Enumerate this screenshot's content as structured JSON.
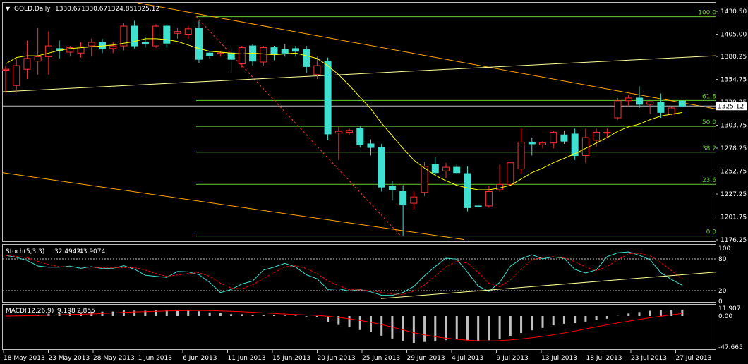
{
  "header": {
    "symbol": "GOLD,Daily",
    "open": "1330.67",
    "high": "1330.67",
    "low": "1324.85",
    "close": "1325.12"
  },
  "stoch": {
    "title": "Stoch(5,3,3)",
    "main": "32.4942",
    "signal": "43.9074",
    "levels": [
      "100",
      "80",
      "20",
      "0"
    ]
  },
  "macd": {
    "title": "MACD(12,26,9)",
    "main": "9.198",
    "signal": "2.855",
    "levels": [
      "11.907",
      "0.00",
      "-47.665"
    ]
  },
  "fibonacci": [
    "100.0",
    "61.8",
    "50.0",
    "38.2",
    "23.6",
    "0.0"
  ],
  "price_axis": [
    "1430.50",
    "1405.00",
    "1380.25",
    "1354.75",
    "1329.25",
    "1303.75",
    "1278.25",
    "1252.75",
    "1227.25",
    "1201.75",
    "1176.25"
  ],
  "current_price": "1325.12",
  "date_axis": [
    "18 May 2013",
    "23 May 2013",
    "28 May 2013",
    "1 Jun 2013",
    "6 Jun 2013",
    "11 Jun 2013",
    "15 Jun 2013",
    "20 Jun 2013",
    "25 Jun 2013",
    "29 Jun 2013",
    "4 Jul 2013",
    "9 Jul 2013",
    "13 Jul 2013",
    "18 Jul 2013",
    "23 Jul 2013",
    "27 Jul 2013"
  ],
  "colors": {
    "bull": "#000000",
    "bull_outline": "#ff3030",
    "bear": "#40e0d0",
    "ma": "#ffff00",
    "trend": "#ffa500",
    "fib": "#66cc33",
    "macd_hist": "#c0c0c0",
    "macd_signal": "#ff0000",
    "stoch_main": "#40e0d0",
    "stoch_signal": "#ff0000"
  },
  "chart_data": {
    "type": "candlestick",
    "symbol": "GOLD",
    "timeframe": "Daily",
    "ylim": [
      1176.25,
      1430.5
    ],
    "candles": [
      {
        "o": 1365,
        "h": 1370,
        "l": 1340,
        "c": 1366
      },
      {
        "o": 1348,
        "h": 1378,
        "l": 1340,
        "c": 1370
      },
      {
        "o": 1366,
        "h": 1398,
        "l": 1355,
        "c": 1378
      },
      {
        "o": 1375,
        "h": 1412,
        "l": 1360,
        "c": 1380
      },
      {
        "o": 1380,
        "h": 1408,
        "l": 1360,
        "c": 1392
      },
      {
        "o": 1389,
        "h": 1398,
        "l": 1378,
        "c": 1387
      },
      {
        "o": 1385,
        "h": 1392,
        "l": 1380,
        "c": 1390
      },
      {
        "o": 1384,
        "h": 1396,
        "l": 1379,
        "c": 1391
      },
      {
        "o": 1392,
        "h": 1400,
        "l": 1380,
        "c": 1396
      },
      {
        "o": 1396,
        "h": 1400,
        "l": 1384,
        "c": 1389
      },
      {
        "o": 1389,
        "h": 1396,
        "l": 1384,
        "c": 1392
      },
      {
        "o": 1392,
        "h": 1418,
        "l": 1387,
        "c": 1414
      },
      {
        "o": 1414,
        "h": 1420,
        "l": 1389,
        "c": 1392
      },
      {
        "o": 1396,
        "h": 1402,
        "l": 1390,
        "c": 1394
      },
      {
        "o": 1392,
        "h": 1416,
        "l": 1390,
        "c": 1414
      },
      {
        "o": 1414,
        "h": 1416,
        "l": 1390,
        "c": 1395
      },
      {
        "o": 1406,
        "h": 1412,
        "l": 1400,
        "c": 1408
      },
      {
        "o": 1405,
        "h": 1414,
        "l": 1400,
        "c": 1411
      },
      {
        "o": 1412,
        "h": 1420,
        "l": 1373,
        "c": 1377
      },
      {
        "o": 1384,
        "h": 1386,
        "l": 1378,
        "c": 1381
      },
      {
        "o": 1383,
        "h": 1386,
        "l": 1380,
        "c": 1384
      },
      {
        "o": 1384,
        "h": 1390,
        "l": 1362,
        "c": 1377
      },
      {
        "o": 1372,
        "h": 1392,
        "l": 1368,
        "c": 1390
      },
      {
        "o": 1392,
        "h": 1394,
        "l": 1370,
        "c": 1375
      },
      {
        "o": 1374,
        "h": 1392,
        "l": 1370,
        "c": 1390
      },
      {
        "o": 1390,
        "h": 1392,
        "l": 1376,
        "c": 1383
      },
      {
        "o": 1388,
        "h": 1394,
        "l": 1380,
        "c": 1384
      },
      {
        "o": 1389,
        "h": 1392,
        "l": 1380,
        "c": 1386
      },
      {
        "o": 1388,
        "h": 1392,
        "l": 1362,
        "c": 1369
      },
      {
        "o": 1360,
        "h": 1380,
        "l": 1355,
        "c": 1370
      },
      {
        "o": 1375,
        "h": 1379,
        "l": 1287,
        "c": 1294
      },
      {
        "o": 1295,
        "h": 1302,
        "l": 1265,
        "c": 1297
      },
      {
        "o": 1296,
        "h": 1300,
        "l": 1293,
        "c": 1298
      },
      {
        "o": 1300,
        "h": 1303,
        "l": 1279,
        "c": 1282
      },
      {
        "o": 1283,
        "h": 1288,
        "l": 1270,
        "c": 1279
      },
      {
        "o": 1279,
        "h": 1283,
        "l": 1230,
        "c": 1235
      },
      {
        "o": 1236,
        "h": 1242,
        "l": 1220,
        "c": 1232
      },
      {
        "o": 1230,
        "h": 1237,
        "l": 1180,
        "c": 1215
      },
      {
        "o": 1217,
        "h": 1230,
        "l": 1210,
        "c": 1224
      },
      {
        "o": 1229,
        "h": 1263,
        "l": 1225,
        "c": 1258
      },
      {
        "o": 1260,
        "h": 1268,
        "l": 1248,
        "c": 1251
      },
      {
        "o": 1253,
        "h": 1262,
        "l": 1245,
        "c": 1257
      },
      {
        "o": 1257,
        "h": 1260,
        "l": 1249,
        "c": 1251
      },
      {
        "o": 1250,
        "h": 1258,
        "l": 1208,
        "c": 1212
      },
      {
        "o": 1214,
        "h": 1216,
        "l": 1212,
        "c": 1213
      },
      {
        "o": 1214,
        "h": 1236,
        "l": 1212,
        "c": 1230
      },
      {
        "o": 1232,
        "h": 1260,
        "l": 1230,
        "c": 1238
      },
      {
        "o": 1238,
        "h": 1262,
        "l": 1236,
        "c": 1262
      },
      {
        "o": 1255,
        "h": 1300,
        "l": 1250,
        "c": 1285
      },
      {
        "o": 1285,
        "h": 1290,
        "l": 1270,
        "c": 1283
      },
      {
        "o": 1282,
        "h": 1286,
        "l": 1278,
        "c": 1284
      },
      {
        "o": 1284,
        "h": 1298,
        "l": 1278,
        "c": 1296
      },
      {
        "o": 1293,
        "h": 1298,
        "l": 1283,
        "c": 1286
      },
      {
        "o": 1294,
        "h": 1300,
        "l": 1265,
        "c": 1270
      },
      {
        "o": 1270,
        "h": 1300,
        "l": 1262,
        "c": 1290
      },
      {
        "o": 1287,
        "h": 1300,
        "l": 1280,
        "c": 1296
      },
      {
        "o": 1295,
        "h": 1300,
        "l": 1290,
        "c": 1296
      },
      {
        "o": 1312,
        "h": 1334,
        "l": 1310,
        "c": 1331
      },
      {
        "o": 1331,
        "h": 1338,
        "l": 1325,
        "c": 1334
      },
      {
        "o": 1334,
        "h": 1347,
        "l": 1323,
        "c": 1327
      },
      {
        "o": 1327,
        "h": 1330,
        "l": 1316,
        "c": 1330
      },
      {
        "o": 1329,
        "h": 1339,
        "l": 1312,
        "c": 1318
      },
      {
        "o": 1316,
        "h": 1325,
        "l": 1315,
        "c": 1323
      },
      {
        "o": 1330.67,
        "h": 1330.67,
        "l": 1324.85,
        "c": 1325.12
      }
    ],
    "moving_average": [
      1372,
      1379,
      1381,
      1381,
      1384,
      1387,
      1389,
      1390,
      1391,
      1392,
      1393,
      1395,
      1397,
      1400,
      1400,
      1399,
      1397,
      1393,
      1389,
      1386,
      1385,
      1384,
      1383,
      1384,
      1383,
      1382,
      1383,
      1384,
      1381,
      1378,
      1370,
      1360,
      1348,
      1335,
      1322,
      1306,
      1292,
      1278,
      1265,
      1256,
      1248,
      1242,
      1237,
      1234,
      1232,
      1232,
      1234,
      1237,
      1244,
      1251,
      1256,
      1262,
      1267,
      1272,
      1278,
      1284,
      1290,
      1297,
      1302,
      1305,
      1310,
      1314,
      1316,
      1318
    ]
  }
}
